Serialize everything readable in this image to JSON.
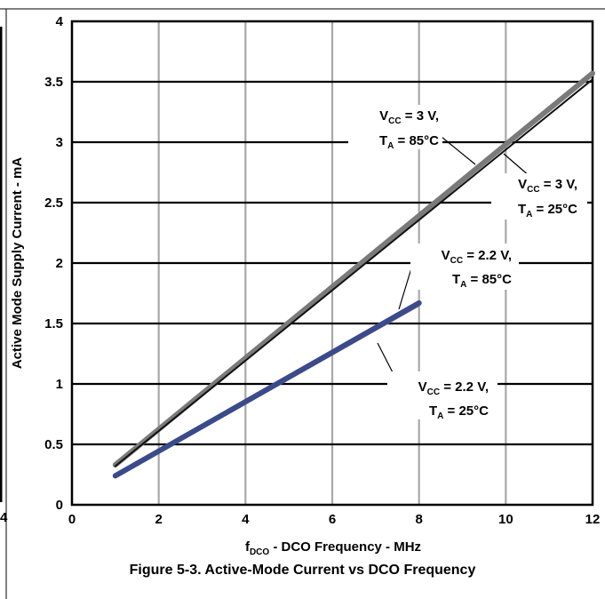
{
  "caption": "Figure 5-3. Active-Mode Current vs DCO Frequency",
  "page_artifacts": {
    "left_margin_number": "4"
  },
  "chart_data": {
    "type": "line",
    "title": "",
    "xlabel_main": "f",
    "xlabel_sub": "DCO",
    "xlabel_rest": " - DCO Frequency - MHz",
    "ylabel": "Active Mode Supply Current - mA",
    "xlim": [
      0,
      12
    ],
    "ylim": [
      0,
      4
    ],
    "x_ticks": [
      "0",
      "2",
      "4",
      "6",
      "8",
      "10",
      "12"
    ],
    "y_ticks": [
      "0",
      "0.5",
      "1",
      "1.5",
      "2",
      "2.5",
      "3",
      "3.5",
      "4"
    ],
    "grid": true,
    "series": [
      {
        "name": "VCC = 3 V, TA = 85°C",
        "x": [
          1,
          12
        ],
        "y": [
          0.33,
          3.57
        ],
        "color": "#7a7a7a"
      },
      {
        "name": "VCC = 3 V, TA = 25°C",
        "x": [
          1,
          12
        ],
        "y": [
          0.32,
          3.52
        ],
        "color": "#111111"
      },
      {
        "name": "VCC = 2.2 V, TA = 85°C",
        "x": [
          1,
          8
        ],
        "y": [
          0.24,
          1.67
        ],
        "color": "#3a4a8a"
      },
      {
        "name": "VCC = 2.2 V, TA = 25°C",
        "x": [
          1,
          8
        ],
        "y": [
          0.23,
          1.65
        ],
        "color": "#8a8a8a"
      }
    ],
    "annotations": [
      {
        "v_main": "V",
        "v_sub": "CC",
        "v_rest": " = 3 V,",
        "t_main": "T",
        "t_sub": "A",
        "t_rest": " = 85°C"
      },
      {
        "v_main": "V",
        "v_sub": "CC",
        "v_rest": " = 3 V,",
        "t_main": "T",
        "t_sub": "A",
        "t_rest": " = 25°C"
      },
      {
        "v_main": "V",
        "v_sub": "CC",
        "v_rest": " = 2.2 V,",
        "t_main": "T",
        "t_sub": "A",
        "t_rest": " = 85°C"
      },
      {
        "v_main": "V",
        "v_sub": "CC",
        "v_rest": " = 2.2 V,",
        "t_main": "T",
        "t_sub": "A",
        "t_rest": " = 25°C"
      }
    ]
  }
}
